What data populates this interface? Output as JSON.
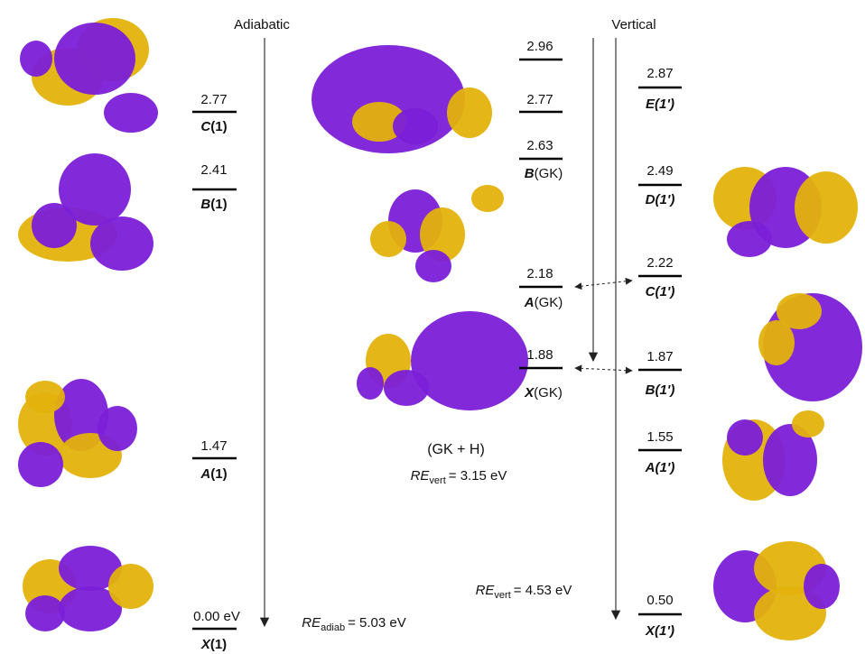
{
  "headers": {
    "adiabatic": "Adiabatic",
    "vertical": "Vertical"
  },
  "left": [
    {
      "energy": "2.77",
      "letter": "C",
      "suffix": "(1)"
    },
    {
      "energy": "2.41",
      "letter": "B",
      "suffix": "(1)"
    },
    {
      "energy": "1.47",
      "letter": "A",
      "suffix": "(1)"
    },
    {
      "energy": "0.00 eV",
      "letter": "X",
      "suffix": "(1)"
    }
  ],
  "middle": [
    {
      "energy": "2.96"
    },
    {
      "energy": "2.77"
    },
    {
      "energy": "2.63",
      "letter": "B",
      "suffix": "(GK)"
    },
    {
      "energy": "2.18",
      "letter": "A",
      "suffix": "(GK)"
    },
    {
      "energy": "1.88",
      "letter": "X",
      "suffix": "(GK)"
    }
  ],
  "right": [
    {
      "energy": "2.87",
      "letter": "E",
      "suffix": "(1')"
    },
    {
      "energy": "2.49",
      "letter": "D",
      "suffix": "(1')"
    },
    {
      "energy": "2.22",
      "letter": "C",
      "suffix": "(1')"
    },
    {
      "energy": "1.87",
      "letter": "B",
      "suffix": "(1')"
    },
    {
      "energy": "1.55",
      "letter": "A",
      "suffix": "(1')"
    },
    {
      "energy": "0.50",
      "letter": "X",
      "suffix": "(1')"
    }
  ],
  "annotations": {
    "molecule": "(GK + H)",
    "re_vert_gk": {
      "base": "RE",
      "sub": "vert",
      "rest": "= 3.15 eV"
    },
    "re_vert_1": {
      "base": "RE",
      "sub": "vert",
      "rest": "= 4.53 eV"
    },
    "re_adiab": {
      "base": "RE",
      "sub": "adiab",
      "rest": "= 5.03 eV"
    }
  }
}
